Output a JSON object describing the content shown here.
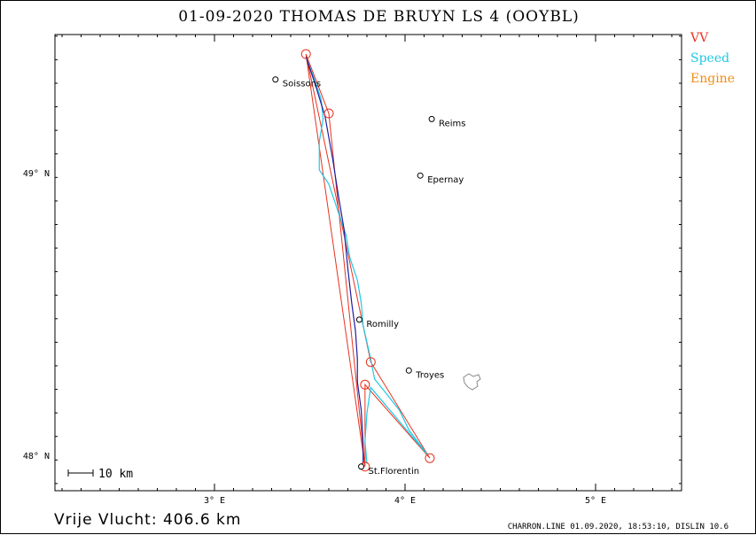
{
  "title": "01-09-2020   THOMAS DE BRUYN   LS 4 (OOYBL)",
  "legend": [
    {
      "label": "VV",
      "color": "#e8321e"
    },
    {
      "label": "Speed",
      "color": "#1ec8e6"
    },
    {
      "label": "Engine",
      "color": "#f08c14"
    }
  ],
  "axes": {
    "x_ticks": [
      {
        "lon": 3,
        "label": "3° E"
      },
      {
        "lon": 4,
        "label": "4° E"
      },
      {
        "lon": 5,
        "label": "5° E"
      }
    ],
    "y_ticks": [
      {
        "lat": 49,
        "label": "49° N"
      },
      {
        "lat": 48,
        "label": "48° N"
      }
    ]
  },
  "scale_bar": {
    "label": "10 km"
  },
  "towns": [
    {
      "name": "Soissons",
      "lon": 3.32,
      "lat": 49.33
    },
    {
      "name": "Reims",
      "lon": 4.14,
      "lat": 49.19
    },
    {
      "name": "Epernay",
      "lon": 4.08,
      "lat": 48.99
    },
    {
      "name": "Romilly",
      "lon": 3.76,
      "lat": 48.48
    },
    {
      "name": "Troyes",
      "lon": 4.02,
      "lat": 48.3
    },
    {
      "name": "St.Florentin",
      "lon": 3.77,
      "lat": 47.96
    }
  ],
  "turnpoints": [
    {
      "lon": 3.48,
      "lat": 49.42
    },
    {
      "lon": 3.6,
      "lat": 49.21
    },
    {
      "lon": 3.82,
      "lat": 48.33
    },
    {
      "lon": 3.79,
      "lat": 48.25
    },
    {
      "lon": 4.13,
      "lat": 47.99
    },
    {
      "lon": 3.79,
      "lat": 47.96
    }
  ],
  "task_course": [
    [
      3.48,
      49.42
    ],
    [
      3.6,
      49.21
    ],
    [
      3.79,
      47.96
    ],
    [
      3.48,
      49.42
    ],
    [
      3.82,
      48.33
    ],
    [
      4.13,
      47.99
    ],
    [
      3.79,
      48.25
    ],
    [
      3.79,
      47.96
    ]
  ],
  "track_speed": [
    [
      3.48,
      49.41
    ],
    [
      3.52,
      49.34
    ],
    [
      3.56,
      49.26
    ],
    [
      3.57,
      49.19
    ],
    [
      3.55,
      49.11
    ],
    [
      3.55,
      49.01
    ],
    [
      3.6,
      48.96
    ],
    [
      3.64,
      48.88
    ],
    [
      3.69,
      48.78
    ],
    [
      3.71,
      48.7
    ],
    [
      3.75,
      48.62
    ],
    [
      3.77,
      48.54
    ],
    [
      3.78,
      48.46
    ],
    [
      3.8,
      48.4
    ],
    [
      3.82,
      48.34
    ],
    [
      3.84,
      48.27
    ],
    [
      3.9,
      48.22
    ],
    [
      3.97,
      48.16
    ],
    [
      4.02,
      48.09
    ],
    [
      4.12,
      48.0
    ],
    [
      3.82,
      48.24
    ],
    [
      3.8,
      48.15
    ],
    [
      3.79,
      48.05
    ],
    [
      3.8,
      47.97
    ]
  ],
  "track_engine": [
    [
      3.48,
      49.41
    ],
    [
      3.53,
      49.31
    ],
    [
      3.58,
      49.2
    ],
    [
      3.62,
      49.05
    ],
    [
      3.65,
      48.92
    ],
    [
      3.68,
      48.8
    ],
    [
      3.7,
      48.66
    ],
    [
      3.72,
      48.54
    ],
    [
      3.74,
      48.44
    ],
    [
      3.75,
      48.34
    ],
    [
      3.75,
      48.26
    ],
    [
      3.77,
      48.16
    ],
    [
      3.78,
      48.04
    ],
    [
      3.78,
      47.97
    ]
  ],
  "footer": {
    "distance": "Vrije Vlucht:  406.6 km",
    "credit": "CHARRON.LINE 01.09.2020, 18:53:10, DISLIN 10.6"
  }
}
